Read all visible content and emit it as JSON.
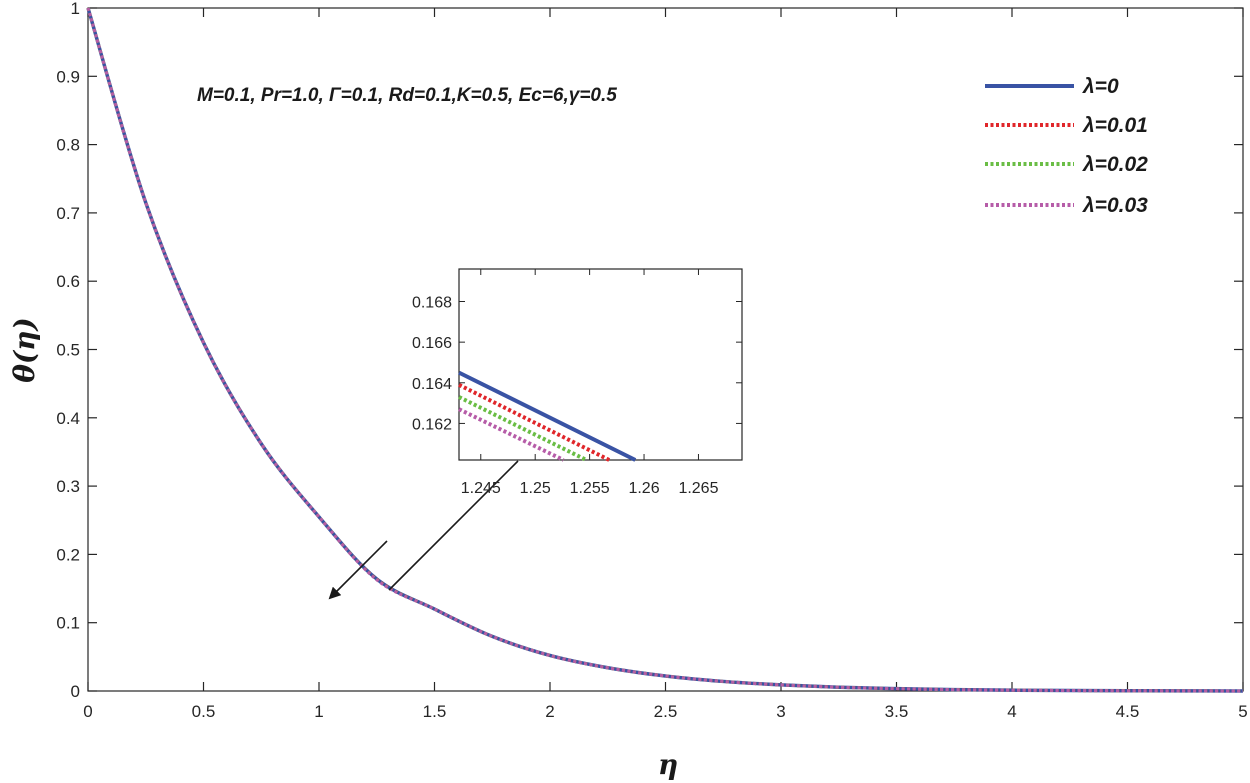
{
  "chart_data": {
    "type": "line",
    "xlabel": "η",
    "ylabel": "θ(η)",
    "xlim": [
      0,
      5
    ],
    "ylim": [
      0,
      1
    ],
    "xticks": [
      "0",
      "0.5",
      "1",
      "1.5",
      "2",
      "2.5",
      "3",
      "3.5",
      "4",
      "4.5",
      "5"
    ],
    "yticks": [
      "0",
      "0.1",
      "0.2",
      "0.3",
      "0.4",
      "0.5",
      "0.6",
      "0.7",
      "0.8",
      "0.9",
      "1"
    ],
    "annotation": "M=0.1, Pr=1.0, Γ=0.1, Rd=0.1,K=0.5, Ec=6,γ=0.5",
    "legend_position": "top-right",
    "grid": false,
    "x": [
      0,
      0.25,
      0.5,
      0.75,
      1.0,
      1.25,
      1.5,
      1.75,
      2.0,
      2.25,
      2.5,
      2.75,
      3.0,
      3.25,
      3.5,
      3.75,
      4.0,
      4.25,
      4.5,
      4.75,
      5.0
    ],
    "series": [
      {
        "name": "λ=0",
        "color": "#3953a4",
        "style": "solid",
        "values": [
          1.0,
          0.715,
          0.51,
          0.362,
          0.255,
          0.164,
          0.12,
          0.08,
          0.052,
          0.034,
          0.022,
          0.014,
          0.009,
          0.0055,
          0.0034,
          0.002,
          0.0012,
          0.0007,
          0.0004,
          0.0002,
          0.0
        ]
      },
      {
        "name": "λ=0.01",
        "color": "#e0262a",
        "style": "dotted",
        "values": [
          1.0,
          0.715,
          0.51,
          0.362,
          0.255,
          0.1636,
          0.12,
          0.08,
          0.052,
          0.034,
          0.022,
          0.014,
          0.009,
          0.0055,
          0.0034,
          0.002,
          0.0012,
          0.0007,
          0.0004,
          0.0002,
          0.0
        ]
      },
      {
        "name": "λ=0.02",
        "color": "#6abd45",
        "style": "dotted",
        "values": [
          1.0,
          0.715,
          0.51,
          0.362,
          0.255,
          0.1632,
          0.12,
          0.08,
          0.052,
          0.034,
          0.022,
          0.014,
          0.009,
          0.0055,
          0.0034,
          0.002,
          0.0012,
          0.0007,
          0.0004,
          0.0002,
          0.0
        ]
      },
      {
        "name": "λ=0.03",
        "color": "#b65ca8",
        "style": "dotted",
        "values": [
          1.0,
          0.715,
          0.51,
          0.362,
          0.255,
          0.1628,
          0.12,
          0.08,
          0.052,
          0.034,
          0.022,
          0.014,
          0.009,
          0.0055,
          0.0034,
          0.002,
          0.0012,
          0.0007,
          0.0004,
          0.0002,
          0.0
        ]
      }
    ],
    "inset": {
      "xlim": [
        1.243,
        1.269
      ],
      "ylim": [
        0.1602,
        0.1696
      ],
      "xticks": [
        "1.245",
        "1.25",
        "1.255",
        "1.26",
        "1.265"
      ],
      "xtick_values": [
        1.245,
        1.25,
        1.255,
        1.26,
        1.265
      ],
      "yticks": [
        "0.162",
        "0.164",
        "0.166",
        "0.168"
      ],
      "ytick_values": [
        0.162,
        0.164,
        0.166,
        0.168
      ],
      "series": [
        {
          "name": "λ=0",
          "x": [
            1.243,
            1.2592
          ],
          "y": [
            0.1645,
            0.1602
          ]
        },
        {
          "name": "λ=0.01",
          "x": [
            1.243,
            1.2568
          ],
          "y": [
            0.1639,
            0.1602
          ]
        },
        {
          "name": "λ=0.02",
          "x": [
            1.243,
            1.2547
          ],
          "y": [
            0.1633,
            0.1602
          ]
        },
        {
          "name": "λ=0.03",
          "x": [
            1.243,
            1.2526
          ],
          "y": [
            0.1627,
            0.1602
          ]
        }
      ]
    }
  }
}
